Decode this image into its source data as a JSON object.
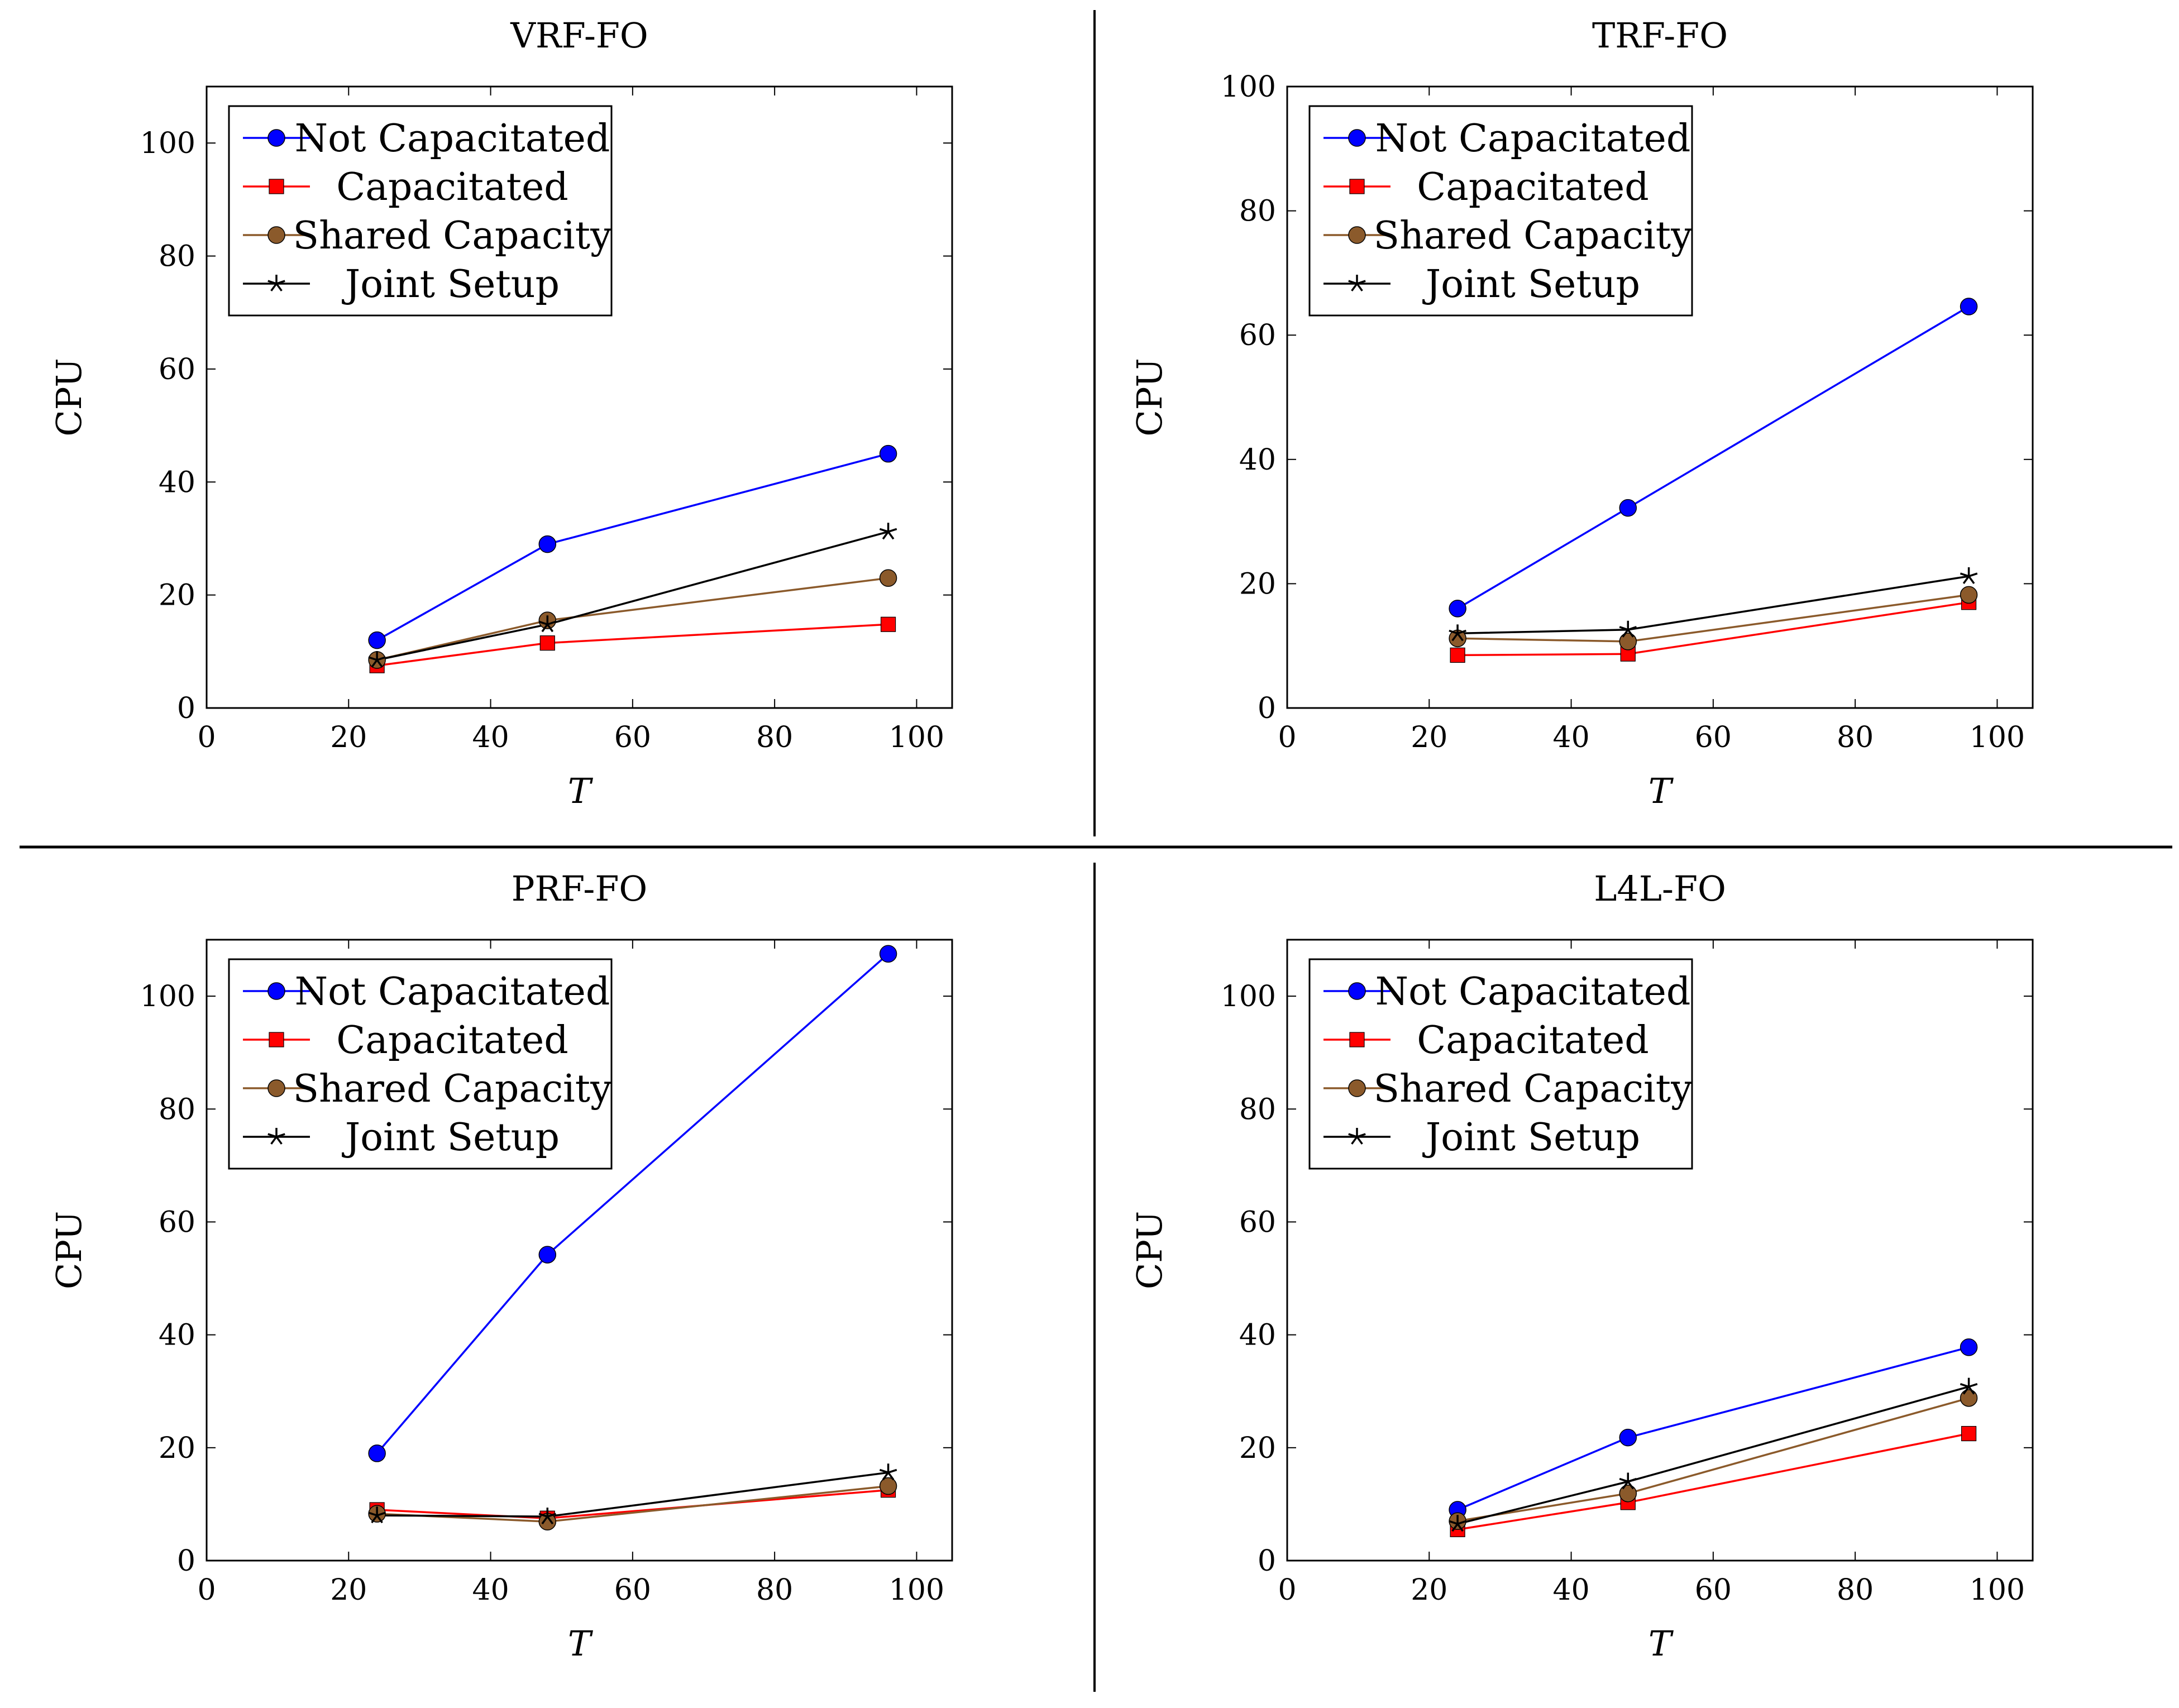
{
  "colors": {
    "not_capacitated": "#0000ff",
    "capacitated": "#ff0000",
    "shared_capacity": "#8b5a2b",
    "joint_setup": "#000000"
  },
  "legend_labels": [
    "Not Capacitated",
    "Capacitated",
    "Shared Capacity",
    "Joint Setup"
  ],
  "chart_data": [
    {
      "type": "line",
      "title": "VRF-FO",
      "xlabel": "T",
      "ylabel": "CPU",
      "xlim": [
        0,
        105
      ],
      "ylim": [
        0,
        110
      ],
      "xticks": [
        "0",
        "20",
        "40",
        "60",
        "80",
        "100"
      ],
      "yticks": [
        "0",
        "20",
        "40",
        "60",
        "80",
        "100"
      ],
      "x": [
        24,
        48,
        96
      ],
      "legend": "top-left",
      "series": [
        {
          "name": "Not Capacitated",
          "values": [
            12,
            29,
            45
          ]
        },
        {
          "name": "Capacitated",
          "values": [
            7.5,
            11.5,
            14.8
          ]
        },
        {
          "name": "Shared Capacity",
          "values": [
            8.5,
            15.5,
            23
          ]
        },
        {
          "name": "Joint Setup",
          "values": [
            8.5,
            14.8,
            31.2
          ]
        }
      ]
    },
    {
      "type": "line",
      "title": "TRF-FO",
      "xlabel": "T",
      "ylabel": "CPU",
      "xlim": [
        0,
        105
      ],
      "ylim": [
        0,
        100
      ],
      "xticks": [
        "0",
        "20",
        "40",
        "60",
        "80",
        "100"
      ],
      "yticks": [
        "0",
        "20",
        "40",
        "60",
        "80",
        "100"
      ],
      "x": [
        24,
        48,
        96
      ],
      "legend": "top-left",
      "series": [
        {
          "name": "Not Capacitated",
          "values": [
            16,
            32.2,
            64.6
          ]
        },
        {
          "name": "Capacitated",
          "values": [
            8.5,
            8.7,
            17
          ]
        },
        {
          "name": "Shared Capacity",
          "values": [
            11.2,
            10.7,
            18.2
          ]
        },
        {
          "name": "Joint Setup",
          "values": [
            12,
            12.6,
            21.2
          ]
        }
      ]
    },
    {
      "type": "line",
      "title": "PRF-FO",
      "xlabel": "T",
      "ylabel": "CPU",
      "xlim": [
        0,
        105
      ],
      "ylim": [
        0,
        110
      ],
      "xticks": [
        "0",
        "20",
        "40",
        "60",
        "80",
        "100"
      ],
      "yticks": [
        "0",
        "20",
        "40",
        "60",
        "80",
        "100"
      ],
      "x": [
        24,
        48,
        96
      ],
      "legend": "top-left",
      "series": [
        {
          "name": "Not Capacitated",
          "values": [
            19,
            54.2,
            107.5
          ]
        },
        {
          "name": "Capacitated",
          "values": [
            9,
            7.5,
            12.5
          ]
        },
        {
          "name": "Shared Capacity",
          "values": [
            8.3,
            6.9,
            13.2
          ]
        },
        {
          "name": "Joint Setup",
          "values": [
            8,
            7.8,
            15.6
          ]
        }
      ]
    },
    {
      "type": "line",
      "title": "L4L-FO",
      "xlabel": "T",
      "ylabel": "CPU",
      "xlim": [
        0,
        105
      ],
      "ylim": [
        0,
        110
      ],
      "xticks": [
        "0",
        "20",
        "40",
        "60",
        "80",
        "100"
      ],
      "yticks": [
        "0",
        "20",
        "40",
        "60",
        "80",
        "100"
      ],
      "x": [
        24,
        48,
        96
      ],
      "legend": "top-left",
      "series": [
        {
          "name": "Not Capacitated",
          "values": [
            9,
            21.8,
            37.8
          ]
        },
        {
          "name": "Capacitated",
          "values": [
            5.5,
            10.3,
            22.5
          ]
        },
        {
          "name": "Shared Capacity",
          "values": [
            7,
            11.9,
            28.8
          ]
        },
        {
          "name": "Joint Setup",
          "values": [
            6.5,
            14,
            30.8
          ]
        }
      ]
    }
  ]
}
